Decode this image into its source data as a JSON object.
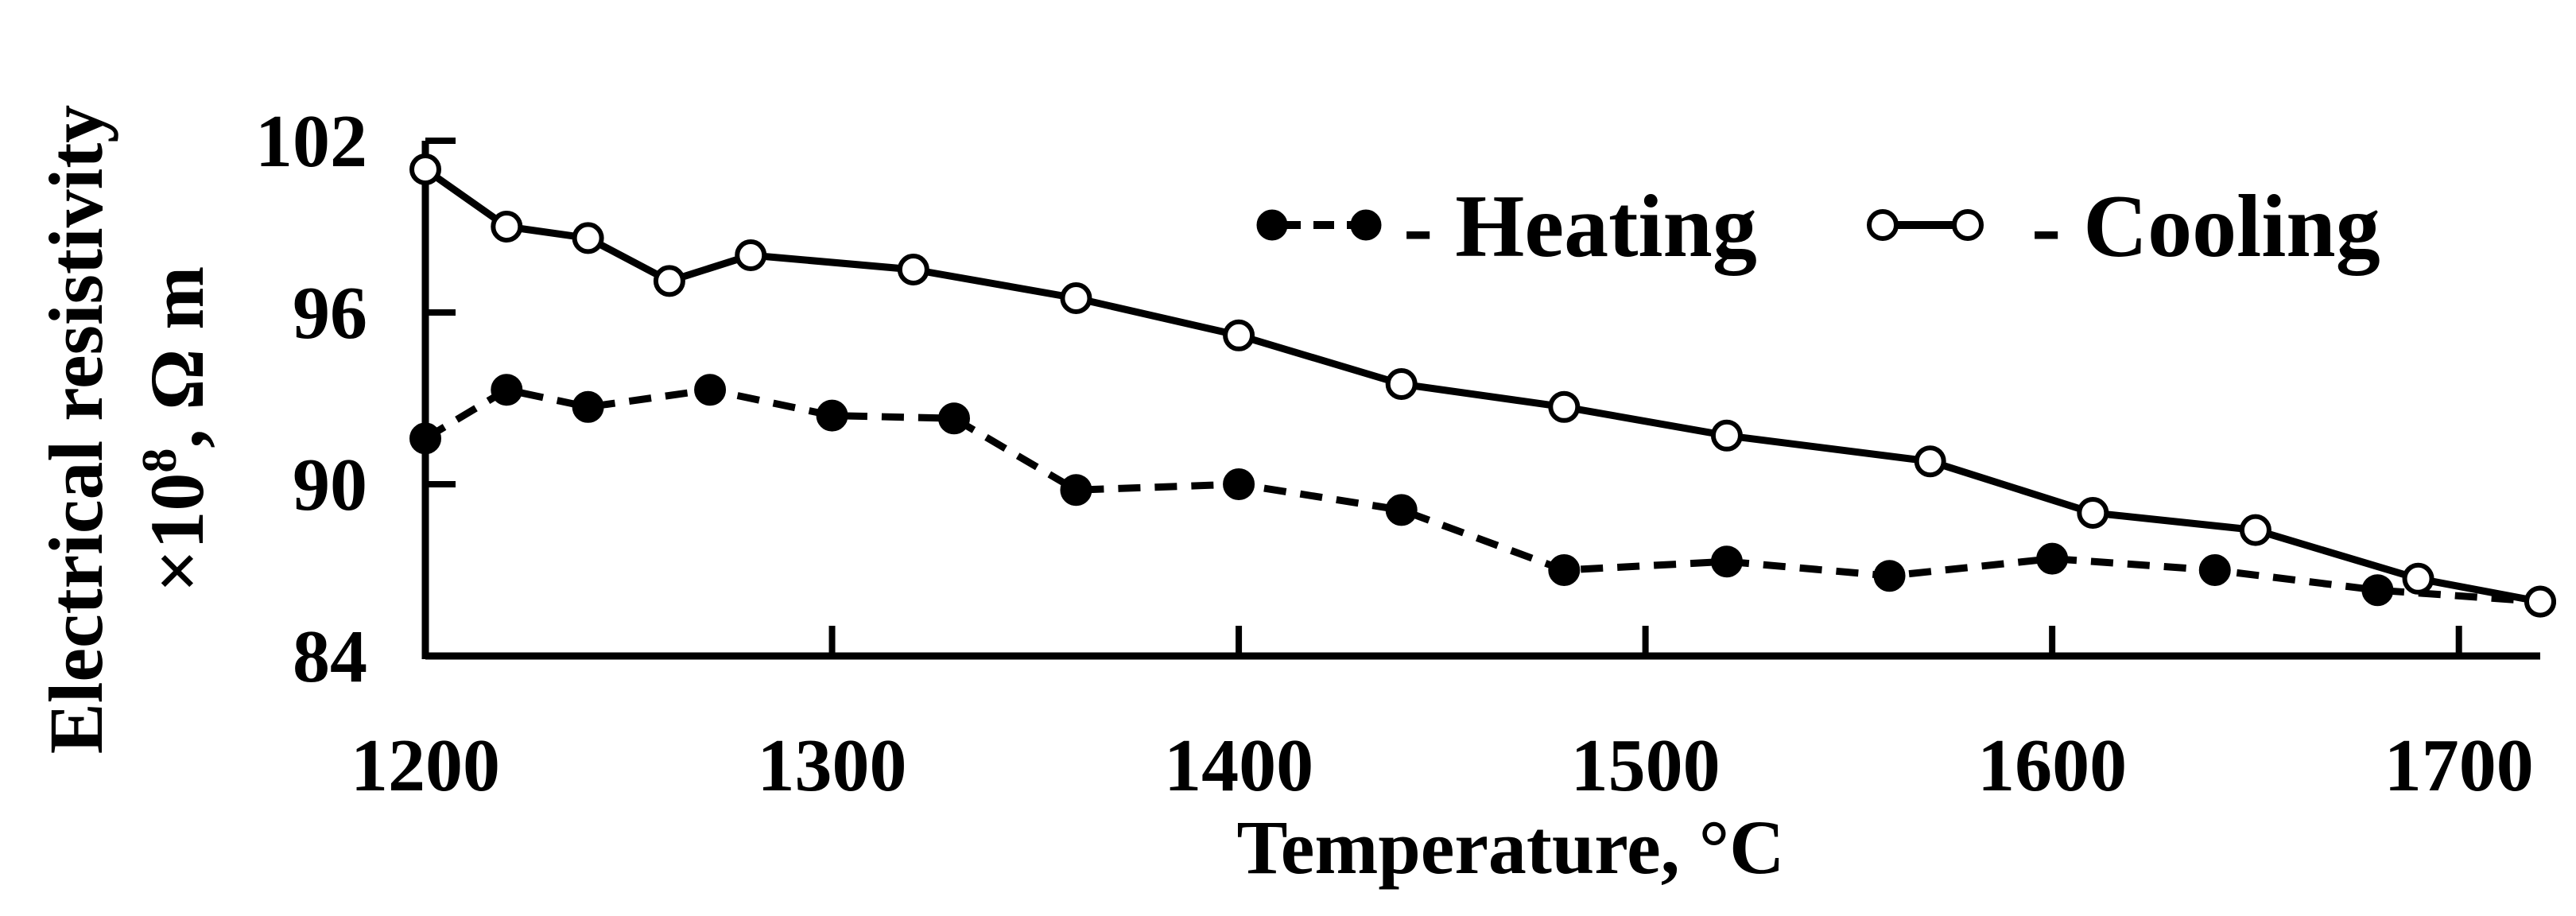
{
  "chart_data": {
    "type": "line",
    "title": "",
    "xlabel": "Temperature, °C",
    "ylabel_line1": "Electrical resistivity",
    "ylabel_line2_prefix": "×10",
    "ylabel_line2_sup": "8",
    "ylabel_line2_suffix": ", Ω m",
    "xlim": [
      1200,
      1720
    ],
    "ylim": [
      84,
      102
    ],
    "xticks": [
      1200,
      1300,
      1400,
      1500,
      1600,
      1700
    ],
    "yticks": [
      84,
      90,
      96,
      102
    ],
    "grid": false,
    "legend_position": "top-right",
    "series": [
      {
        "name": "- Heating",
        "marker": "filled-circle",
        "line_style": "dashed",
        "x": [
          1200,
          1220,
          1240,
          1270,
          1300,
          1330,
          1360,
          1400,
          1440,
          1480,
          1520,
          1560,
          1600,
          1640,
          1680,
          1720
        ],
        "y": [
          91.6,
          93.3,
          92.7,
          93.3,
          92.4,
          92.3,
          89.8,
          90.0,
          89.1,
          87.0,
          87.3,
          86.8,
          87.4,
          87.0,
          86.3,
          85.9
        ]
      },
      {
        "name": "- Cooling",
        "marker": "open-circle",
        "line_style": "solid",
        "x": [
          1200,
          1220,
          1240,
          1260,
          1280,
          1320,
          1360,
          1400,
          1440,
          1480,
          1520,
          1570,
          1610,
          1650,
          1690,
          1720
        ],
        "y": [
          101.0,
          99.0,
          98.6,
          97.1,
          98.0,
          97.5,
          96.5,
          95.2,
          93.5,
          92.7,
          91.7,
          90.8,
          89.0,
          88.4,
          86.7,
          85.9
        ]
      }
    ]
  }
}
